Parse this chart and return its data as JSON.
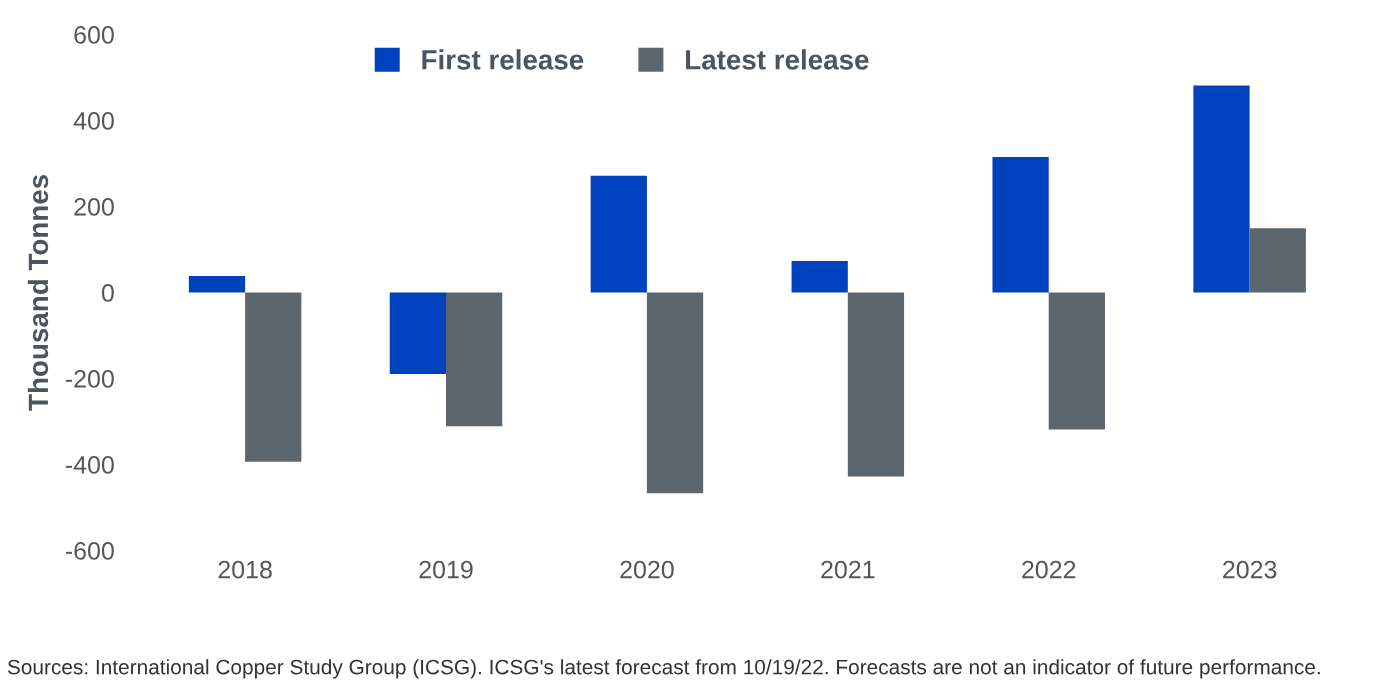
{
  "chart_data": {
    "type": "bar",
    "ylabel": "Thousand Tonnes",
    "categories": [
      "2018",
      "2019",
      "2020",
      "2021",
      "2022",
      "2023"
    ],
    "series": [
      {
        "name": "First release",
        "color": "#0041bd",
        "values": [
          38,
          -190,
          271,
          73,
          315,
          481
        ]
      },
      {
        "name": "Latest release",
        "color": "#5c666e",
        "values": [
          -394,
          -311,
          -467,
          -428,
          -319,
          149
        ]
      }
    ],
    "ylim": [
      -600,
      600
    ],
    "yticks": [
      -600,
      -400,
      -200,
      0,
      200,
      400,
      600
    ],
    "grid": false,
    "legend": "top",
    "annotations": [
      "Sources: International Copper Study Group (ICSG). ICSG's latest forecast from 10/19/22. Forecasts are not an indicator of future performance."
    ]
  }
}
